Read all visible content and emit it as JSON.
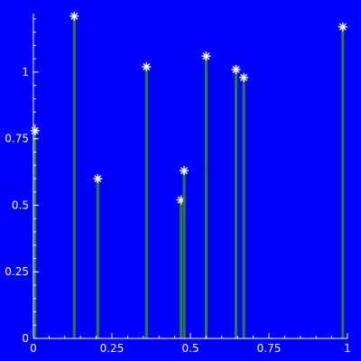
{
  "chart_data": {
    "type": "stem",
    "title": "",
    "xlabel": "",
    "ylabel": "",
    "xlim": [
      0,
      1
    ],
    "ylim": [
      0,
      1.22
    ],
    "grid": false,
    "x_ticks": [
      0,
      0.25,
      0.5,
      0.75,
      1
    ],
    "x_tick_labels": [
      "0",
      "0.25",
      "0.5",
      "0.75",
      "1"
    ],
    "y_ticks": [
      0,
      0.25,
      0.5,
      0.75,
      1
    ],
    "y_tick_labels": [
      "0",
      "0.25",
      "0.5",
      "0.75",
      "1"
    ],
    "series": [
      {
        "x": [
          0.005,
          0.13,
          0.205,
          0.36,
          0.47,
          0.48,
          0.55,
          0.645,
          0.67,
          0.985
        ],
        "values": [
          0.78,
          1.21,
          0.6,
          1.02,
          0.52,
          0.63,
          1.06,
          1.01,
          0.98,
          1.17
        ]
      }
    ],
    "colors": {
      "background": "#0000ff",
      "stem": "#2e7d32",
      "marker": "#ffffff",
      "axis": "#ffffff"
    }
  }
}
